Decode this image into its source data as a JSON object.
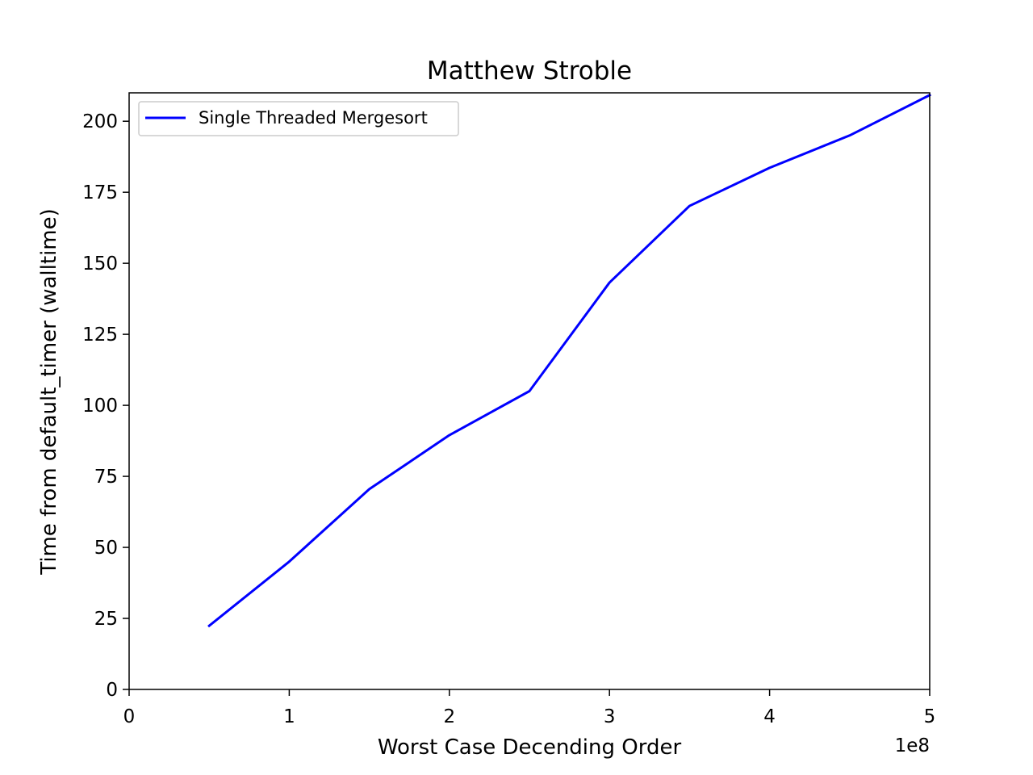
{
  "chart_data": {
    "type": "line",
    "title": "Matthew Stroble",
    "xlabel": "Worst Case Decending Order",
    "ylabel": "Time from default_timer (walltime)",
    "x_offset_label": "1e8",
    "x": [
      0.5,
      1.0,
      1.5,
      2.0,
      2.5,
      3.0,
      3.5,
      4.0,
      4.5,
      5.0
    ],
    "series": [
      {
        "name": "Single Threaded Mergesort",
        "color": "#0000ff",
        "values": [
          22.4,
          45.0,
          70.5,
          89.5,
          105.0,
          143.2,
          170.2,
          183.6,
          195.0,
          209.2
        ]
      }
    ],
    "xlim": [
      0,
      5
    ],
    "ylim": [
      0,
      210
    ],
    "xticks": [
      0,
      1,
      2,
      3,
      4,
      5
    ],
    "xtick_labels": [
      "0",
      "1",
      "2",
      "3",
      "4",
      "5"
    ],
    "yticks": [
      0,
      25,
      50,
      75,
      100,
      125,
      150,
      175,
      200
    ],
    "ytick_labels": [
      "0",
      "25",
      "50",
      "75",
      "100",
      "125",
      "150",
      "175",
      "200"
    ],
    "grid": false,
    "legend_position": "top-left"
  }
}
